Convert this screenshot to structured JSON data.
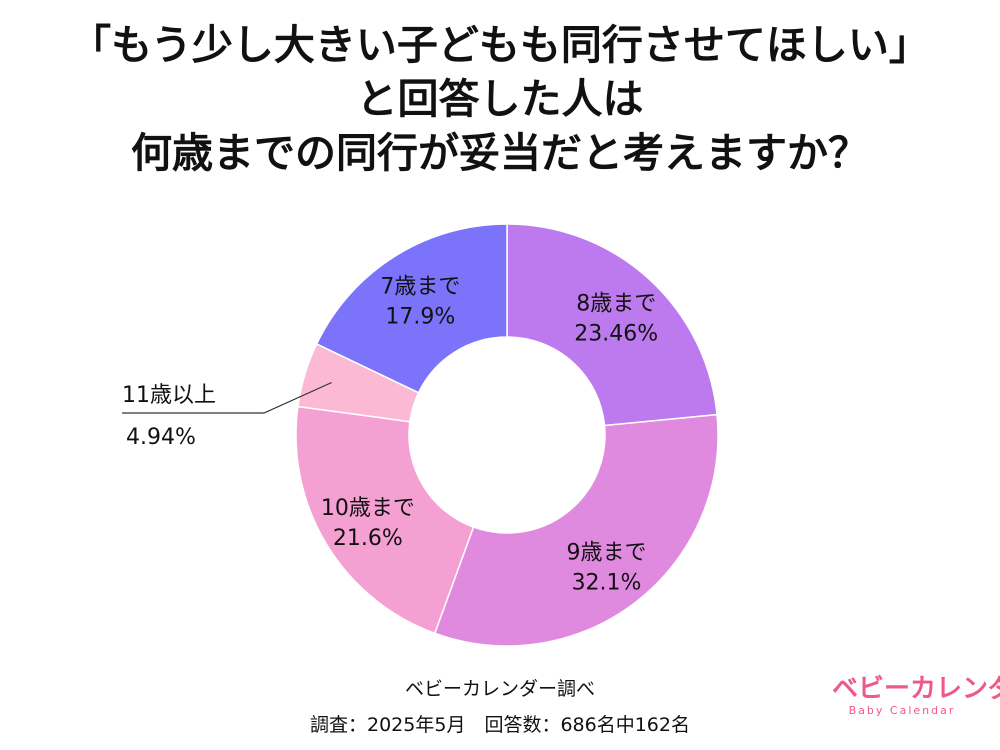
{
  "title_lines": [
    "「もう少し大きい子どもも同行させてほしい」",
    "と回答した人は",
    "何歳までの同行が妥当だと考えますか？"
  ],
  "chart_data": {
    "type": "pie",
    "donut": true,
    "categories": [
      "8歳まで",
      "9歳まで",
      "10歳まで",
      "11歳以上",
      "7歳まで"
    ],
    "values": [
      23.46,
      32.1,
      21.6,
      4.94,
      17.9
    ],
    "value_labels": [
      "23.46%",
      "32.1%",
      "21.6%",
      "4.94%",
      "17.9%"
    ],
    "colors": [
      "#bd79ee",
      "#e08adf",
      "#f5a0d2",
      "#fbb9d3",
      "#7b74fb"
    ],
    "legend": "none"
  },
  "footer": {
    "source": "ベビーカレンダー調べ",
    "survey": "調査：2025年5月　回答数：686名中162名"
  },
  "logo": {
    "text": "ベビーカレンダー",
    "sub": "Baby Calendar"
  }
}
